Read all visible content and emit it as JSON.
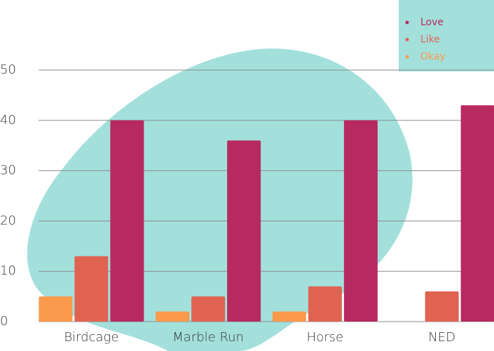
{
  "chart_data": {
    "type": "bar",
    "categories": [
      "Birdcage",
      "Marble Run",
      "Horse",
      "NED"
    ],
    "series": [
      {
        "name": "Okay",
        "color": "#fb9a4c",
        "values": [
          5,
          2,
          2,
          0
        ]
      },
      {
        "name": "Like",
        "color": "#e06352",
        "values": [
          13,
          5,
          7,
          6
        ]
      },
      {
        "name": "Love",
        "color": "#b72a60",
        "values": [
          40,
          36,
          40,
          43
        ]
      }
    ],
    "ylim": [
      0,
      50
    ],
    "yticks": [
      0,
      10,
      20,
      30,
      40,
      50
    ],
    "grid": true,
    "legend": "top-right"
  }
}
